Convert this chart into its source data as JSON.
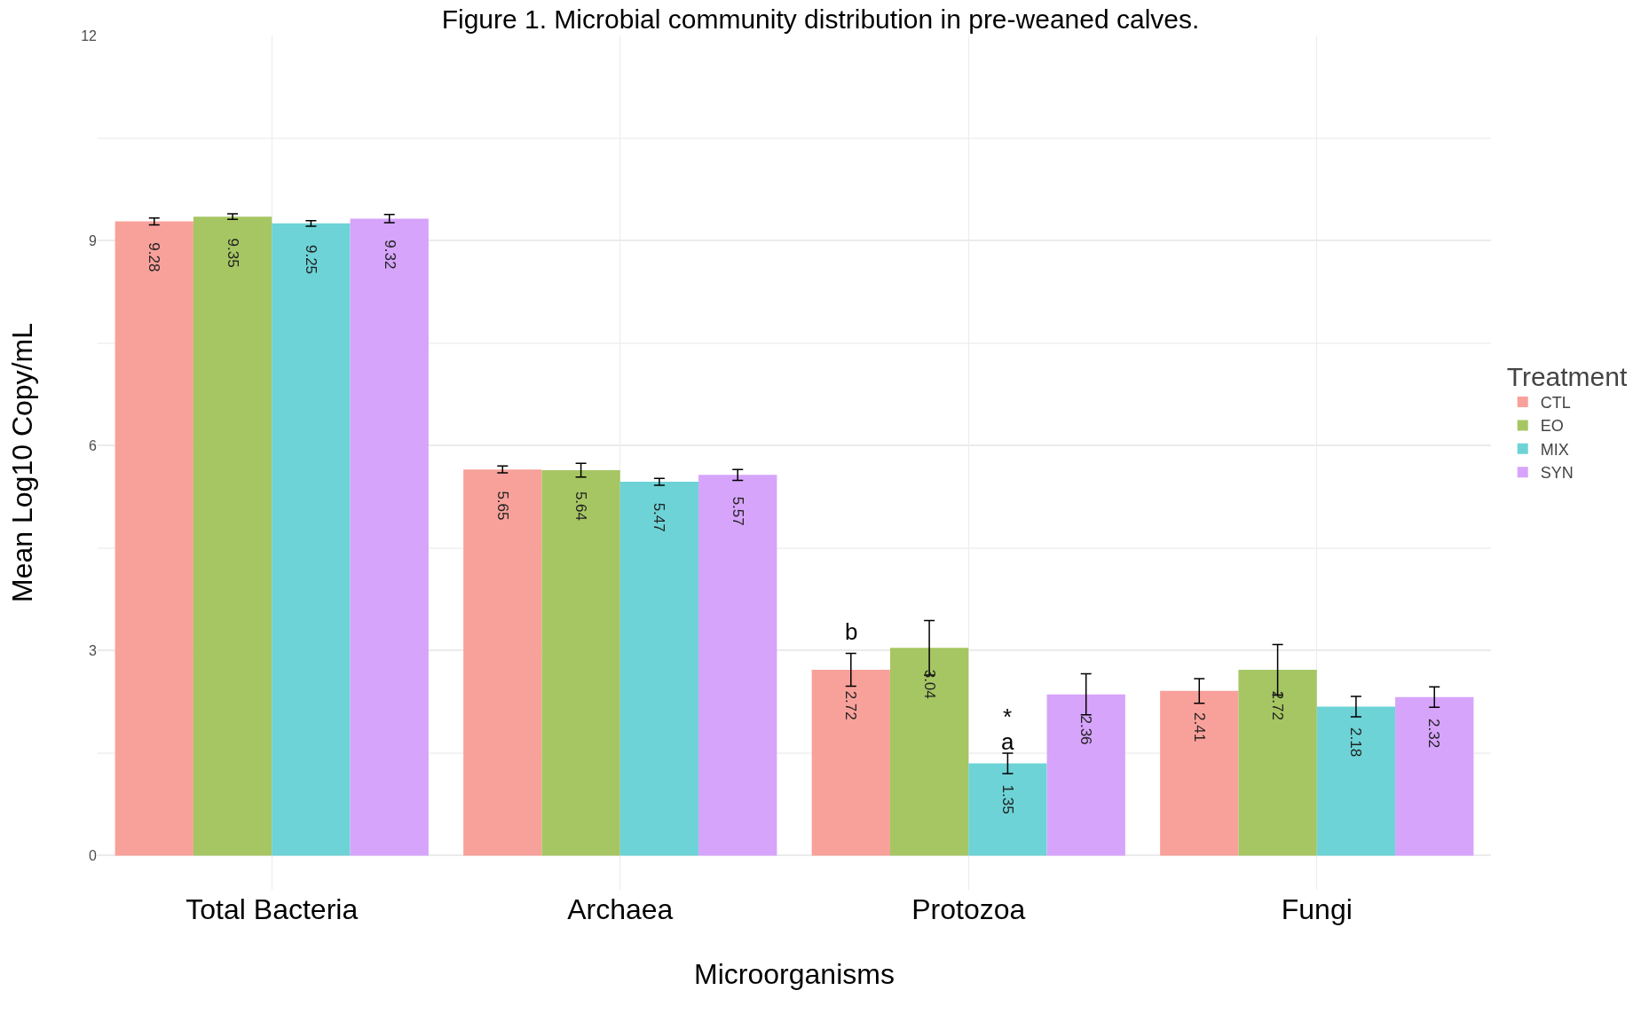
{
  "chart_data": {
    "type": "bar",
    "title": "Figure 1. Microbial community distribution in pre-weaned calves.",
    "xlabel": "Microorganisms",
    "ylabel": "Mean Log10 Copy/mL",
    "legend_title": "Treatment",
    "categories": [
      "Total Bacteria",
      "Archaea",
      "Protozoa",
      "Fungi"
    ],
    "series": [
      {
        "name": "CTL",
        "color": "#f8a19a",
        "values": [
          9.28,
          5.65,
          2.72,
          2.41
        ],
        "errors": [
          0.05,
          0.05,
          0.24,
          0.18
        ]
      },
      {
        "name": "EO",
        "color": "#a6c663",
        "values": [
          9.35,
          5.64,
          3.04,
          2.72
        ],
        "errors": [
          0.04,
          0.1,
          0.4,
          0.37
        ]
      },
      {
        "name": "MIX",
        "color": "#6dd3d6",
        "values": [
          9.25,
          5.47,
          1.35,
          2.18
        ],
        "errors": [
          0.04,
          0.05,
          0.15,
          0.15
        ]
      },
      {
        "name": "SYN",
        "color": "#d6a4fb",
        "values": [
          9.32,
          5.57,
          2.36,
          2.32
        ],
        "errors": [
          0.06,
          0.08,
          0.3,
          0.15
        ]
      }
    ],
    "annotations": [
      "b",
      {
        "text": "a",
        "x": "Protozoa",
        "y": 1.5
      },
      {
        "text": "*",
        "x": "Protozoa",
        "y": 1.5
      }
    ],
    "ylim": [
      -0.5,
      12
    ],
    "yticks": [
      0,
      3,
      6,
      9,
      12
    ],
    "grid": true,
    "legend": "right",
    "data_labels": true
  }
}
